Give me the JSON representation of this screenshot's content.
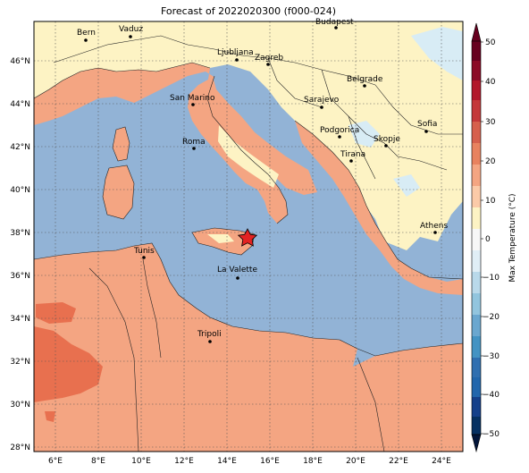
{
  "title": "Forecast of 2022020300 (f000-024)",
  "colorbar": {
    "label": "Max Temperature (°C)",
    "ticks": [
      "50",
      "40",
      "30",
      "20",
      "10",
      "0",
      "−10",
      "−20",
      "−30",
      "−40",
      "−50"
    ],
    "colors": [
      "#67001f",
      "#b2182b",
      "#d6604d",
      "#f4a582",
      "#fddbc7",
      "#f7f7f7",
      "#d1e5f0",
      "#92c5de",
      "#4393c3",
      "#2166ac",
      "#053061"
    ]
  },
  "axes": {
    "x_ticks": [
      "6°E",
      "8°E",
      "10°E",
      "12°E",
      "14°E",
      "16°E",
      "18°E",
      "20°E",
      "22°E",
      "24°E"
    ],
    "y_ticks": [
      "46°N",
      "44°N",
      "42°N",
      "40°N",
      "38°N",
      "36°N",
      "34°N",
      "32°N",
      "30°N",
      "28°N"
    ]
  },
  "cities": [
    {
      "name": "Bern"
    },
    {
      "name": "Vaduz"
    },
    {
      "name": "Budapest"
    },
    {
      "name": "Ljubljana"
    },
    {
      "name": "Zagreb"
    },
    {
      "name": "Belgrade"
    },
    {
      "name": "San Marino"
    },
    {
      "name": "Sarajevo"
    },
    {
      "name": "Sofia"
    },
    {
      "name": "Podgorica"
    },
    {
      "name": "Skopje"
    },
    {
      "name": "Roma"
    },
    {
      "name": "Tirana"
    },
    {
      "name": "Athens"
    },
    {
      "name": "Tunis"
    },
    {
      "name": "La Valette"
    },
    {
      "name": "Tripoli"
    }
  ]
}
